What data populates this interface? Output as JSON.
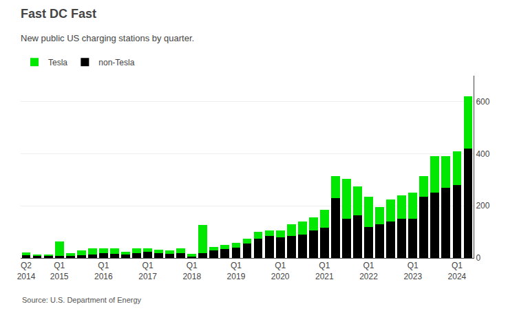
{
  "chart_data": {
    "type": "bar",
    "title": "Fast DC Fast",
    "subtitle": "New public US charging stations by quarter.",
    "annotations": [
      "Source: U.S. Department of Energy"
    ],
    "categories": [
      "Q2\n2014",
      null,
      null,
      "Q1\n2015",
      null,
      null,
      null,
      "Q1\n2016",
      null,
      null,
      null,
      "Q1\n2017",
      null,
      null,
      null,
      "Q1\n2018",
      null,
      null,
      null,
      "Q1\n2019",
      null,
      null,
      null,
      "Q1\n2020",
      null,
      null,
      null,
      "Q1\n2021",
      null,
      null,
      null,
      "Q1\n2022",
      null,
      null,
      null,
      "Q1\n2023",
      null,
      null,
      null,
      "Q1\n2024",
      null
    ],
    "series": [
      {
        "name": "non-Tesla",
        "color": "#000000",
        "values": [
          10,
          8,
          8,
          8,
          8,
          10,
          12,
          18,
          15,
          12,
          18,
          25,
          18,
          16,
          18,
          5,
          18,
          28,
          35,
          40,
          55,
          75,
          85,
          80,
          85,
          90,
          105,
          115,
          230,
          150,
          165,
          120,
          130,
          140,
          150,
          150,
          235,
          250,
          270,
          280,
          420
        ]
      },
      {
        "name": "Tesla",
        "color": "#00e800",
        "values": [
          12,
          5,
          5,
          55,
          10,
          18,
          25,
          18,
          22,
          12,
          20,
          12,
          15,
          12,
          18,
          10,
          110,
          15,
          15,
          18,
          18,
          25,
          20,
          25,
          45,
          50,
          50,
          70,
          85,
          155,
          110,
          115,
          65,
          85,
          90,
          100,
          80,
          140,
          120,
          130,
          200
        ]
      }
    ],
    "stacked": true,
    "ylim": [
      0,
      700
    ],
    "yticks": [
      0,
      200,
      400,
      600
    ],
    "grid": true,
    "legend": "upper left"
  }
}
